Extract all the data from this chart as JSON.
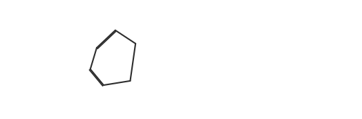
{
  "background": "#ffffff",
  "line_color": "#2d2d2d",
  "line_width": 1.5,
  "font_size": 8,
  "font_color": "#2d2d2d"
}
